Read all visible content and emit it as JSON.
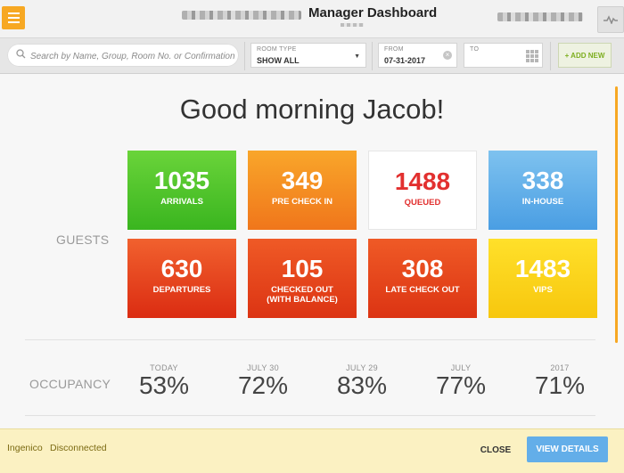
{
  "header": {
    "title": "Manager Dashboard"
  },
  "filters": {
    "search_placeholder": "Search by Name, Group, Room No. or Confirmation #",
    "room_type": {
      "label": "ROOM TYPE",
      "value": "SHOW ALL"
    },
    "from": {
      "label": "FROM",
      "value": "07-31-2017"
    },
    "to": {
      "label": "TO",
      "value": ""
    },
    "add_new_label": "+ ADD NEW"
  },
  "greeting": "Good morning Jacob!",
  "guests": {
    "label": "GUESTS",
    "tiles": [
      {
        "value": "1035",
        "label": "ARRIVALS",
        "color": "#4fc52a"
      },
      {
        "value": "349",
        "label": "PRE CHECK IN",
        "color": "#f58f22"
      },
      {
        "value": "1488",
        "label": "QUEUED",
        "color": "#e2302f"
      },
      {
        "value": "338",
        "label": "IN-HOUSE",
        "color": "#5eaee8"
      },
      {
        "value": "630",
        "label": "DEPARTURES",
        "color": "#e4461f"
      },
      {
        "value": "105",
        "label": "CHECKED OUT",
        "label2": "(WITH BALANCE)",
        "color": "#e4461f"
      },
      {
        "value": "308",
        "label": "LATE CHECK OUT",
        "color": "#e4461f"
      },
      {
        "value": "1483",
        "label": "VIPS",
        "color": "#fbd21a"
      }
    ]
  },
  "occupancy": {
    "label": "OCCUPANCY",
    "columns": [
      {
        "label": "TODAY",
        "value": "53%"
      },
      {
        "label": "JULY 30",
        "value": "72%"
      },
      {
        "label": "JULY 29",
        "value": "83%"
      },
      {
        "label": "JULY",
        "value": "77%"
      },
      {
        "label": "2017",
        "value": "71%"
      }
    ]
  },
  "footer": {
    "device": "Ingenico",
    "status": "Disconnected",
    "close_label": "CLOSE",
    "view_details_label": "VIEW DETAILS"
  }
}
